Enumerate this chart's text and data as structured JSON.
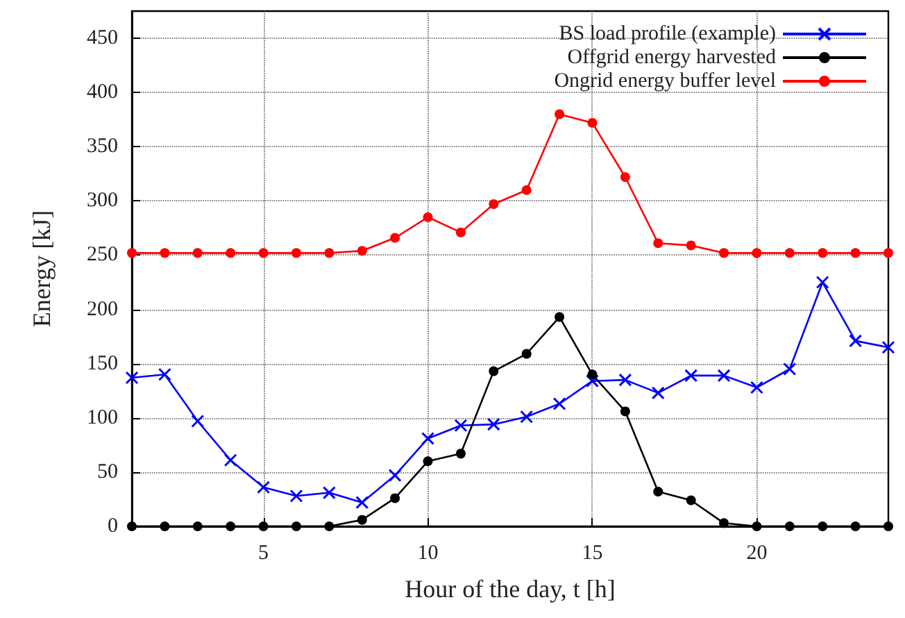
{
  "chart_data": {
    "type": "line",
    "xlabel": "Hour of the day, t [h]",
    "ylabel": "Energy [kJ]",
    "x": [
      1,
      2,
      3,
      4,
      5,
      6,
      7,
      8,
      9,
      10,
      11,
      12,
      13,
      14,
      15,
      16,
      17,
      18,
      19,
      20,
      21,
      22,
      23,
      24
    ],
    "series": [
      {
        "name": "BS load profile (example)",
        "color": "#0000ff",
        "marker": "cross",
        "values": [
          137,
          140,
          97,
          61,
          36,
          28,
          31,
          22,
          47,
          81,
          93,
          94,
          101,
          113,
          134,
          135,
          123,
          139,
          139,
          128,
          145,
          225,
          171,
          165
        ]
      },
      {
        "name": "Offgrid energy harvested",
        "color": "#000000",
        "marker": "circle",
        "values": [
          0,
          0,
          0,
          0,
          0,
          0,
          0,
          6,
          26,
          60,
          67,
          143,
          159,
          193,
          140,
          106,
          32,
          24,
          3,
          0,
          0,
          0,
          0,
          0
        ]
      },
      {
        "name": "Ongrid energy buffer level",
        "color": "#ff0000",
        "marker": "circle",
        "values": [
          252,
          252,
          252,
          252,
          252,
          252,
          252,
          254,
          266,
          285,
          271,
          297,
          310,
          380,
          372,
          322,
          261,
          259,
          252,
          252,
          252,
          252,
          252,
          252
        ]
      }
    ],
    "xlim": [
      1,
      24
    ],
    "xticks": [
      5,
      10,
      15,
      20
    ],
    "ylim": [
      0,
      475
    ],
    "yticks": [
      0,
      50,
      100,
      150,
      200,
      250,
      300,
      350,
      400,
      450
    ],
    "grid": true,
    "legend": "top right",
    "line_style": "solid"
  }
}
